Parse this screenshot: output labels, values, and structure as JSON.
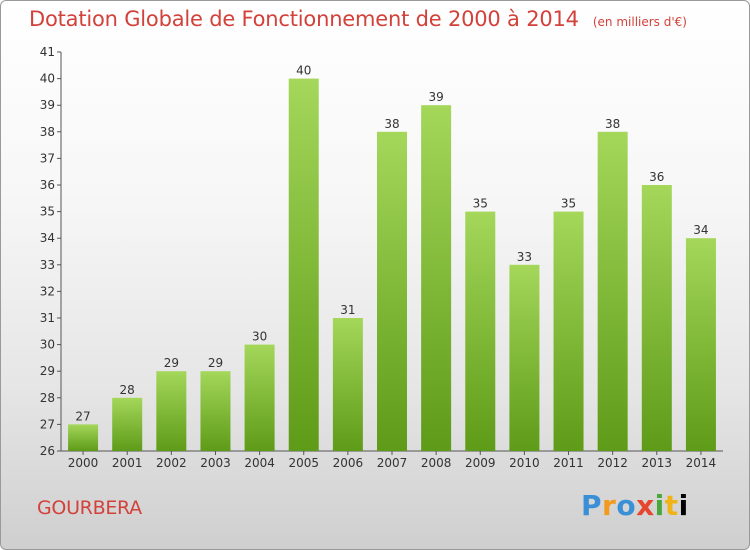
{
  "header": {
    "title": "Dotation Globale de Fonctionnement de 2000 à 2014",
    "unit": "(en milliers d'€)"
  },
  "footer": {
    "commune": "GOURBERA",
    "logo_letters": [
      "P",
      "r",
      "o",
      "x",
      "i",
      "t",
      "i"
    ]
  },
  "colors": {
    "bar_top": "#a4d75a",
    "bar_bottom": "#5e9b18",
    "title": "#d2413a"
  },
  "chart_data": {
    "type": "bar",
    "title": "Dotation Globale de Fonctionnement de 2000 à 2014",
    "xlabel": "",
    "ylabel": "",
    "categories": [
      "2000",
      "2001",
      "2002",
      "2003",
      "2004",
      "2005",
      "2006",
      "2007",
      "2008",
      "2009",
      "2010",
      "2011",
      "2012",
      "2013",
      "2014"
    ],
    "values": [
      27,
      28,
      29,
      29,
      30,
      40,
      31,
      38,
      39,
      35,
      33,
      35,
      38,
      36,
      34
    ],
    "ylim": [
      26,
      41
    ],
    "yticks": [
      26,
      27,
      28,
      29,
      30,
      31,
      32,
      33,
      34,
      35,
      36,
      37,
      38,
      39,
      40,
      41
    ],
    "grid": false,
    "legend": "none"
  }
}
